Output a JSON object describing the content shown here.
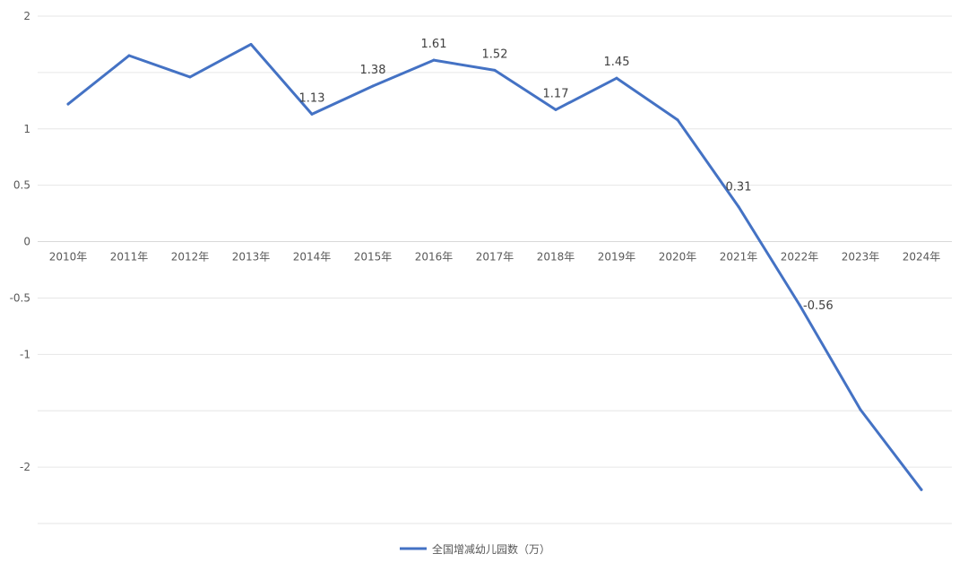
{
  "chart_data": {
    "type": "line",
    "categories": [
      "2010年",
      "2011年",
      "2012年",
      "2013年",
      "2014年",
      "2015年",
      "2016年",
      "2017年",
      "2018年",
      "2019年",
      "2020年",
      "2021年",
      "2022年",
      "2023年",
      "2024年"
    ],
    "series": [
      {
        "name": "全国增减幼儿园数（万）",
        "color": "#4472c4",
        "values": [
          1.22,
          1.65,
          1.46,
          1.75,
          1.13,
          1.38,
          1.61,
          1.52,
          1.17,
          1.45,
          1.08,
          0.31,
          -0.56,
          -1.49,
          -2.2
        ]
      }
    ],
    "data_labels": [
      {
        "index": 4,
        "text": "1.13",
        "color": "#404040"
      },
      {
        "index": 5,
        "text": "1.38",
        "color": "#404040"
      },
      {
        "index": 6,
        "text": "1.61",
        "color": "#404040"
      },
      {
        "index": 7,
        "text": "1.52",
        "color": "#404040"
      },
      {
        "index": 8,
        "text": "1.17",
        "color": "#404040"
      },
      {
        "index": 9,
        "text": "1.45",
        "color": "#404040"
      },
      {
        "index": 11,
        "text": "0.31",
        "color": "#404040"
      },
      {
        "index": 12,
        "text": "-0.56",
        "color": "#ff0000"
      }
    ],
    "ylim": [
      -2.5,
      2
    ],
    "yticks": [
      2,
      1.5,
      1,
      0.5,
      0,
      -0.5,
      -1,
      -1.5,
      -2,
      -2.5
    ],
    "ytick_labels": [
      "2",
      "",
      "1",
      "0.5",
      "0",
      "-0.5",
      "-1",
      "",
      "-2",
      ""
    ],
    "grid": true,
    "legend": "bottom",
    "title": "",
    "xlabel": "",
    "ylabel": ""
  }
}
